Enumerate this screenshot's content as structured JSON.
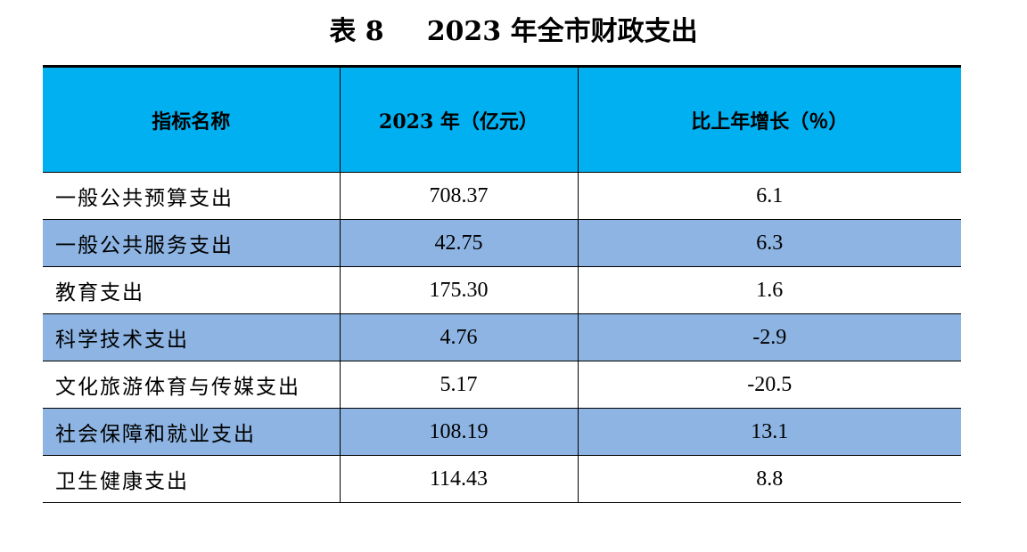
{
  "title": {
    "table_no": "表 8",
    "text": "2023 年全市财政支出"
  },
  "table": {
    "headers": [
      "指标名称",
      "2023 年（亿元）",
      "比上年增长（％）"
    ],
    "rows": [
      {
        "name": "一般公共预算支出",
        "value": "708.37",
        "growth": "6.1"
      },
      {
        "name": "一般公共服务支出",
        "value": "42.75",
        "growth": "6.3"
      },
      {
        "name": "教育支出",
        "value": "175.30",
        "growth": "1.6"
      },
      {
        "name": "科学技术支出",
        "value": "4.76",
        "growth": "-2.9"
      },
      {
        "name": "文化旅游体育与传媒支出",
        "value": "5.17",
        "growth": "-20.5"
      },
      {
        "name": "社会保障和就业支出",
        "value": "108.19",
        "growth": "13.1"
      },
      {
        "name": "卫生健康支出",
        "value": "114.43",
        "growth": "8.8"
      }
    ]
  },
  "colors": {
    "header_bg": "#00b0f0",
    "alt_row_bg": "#8db4e2",
    "rule": "#000000"
  }
}
